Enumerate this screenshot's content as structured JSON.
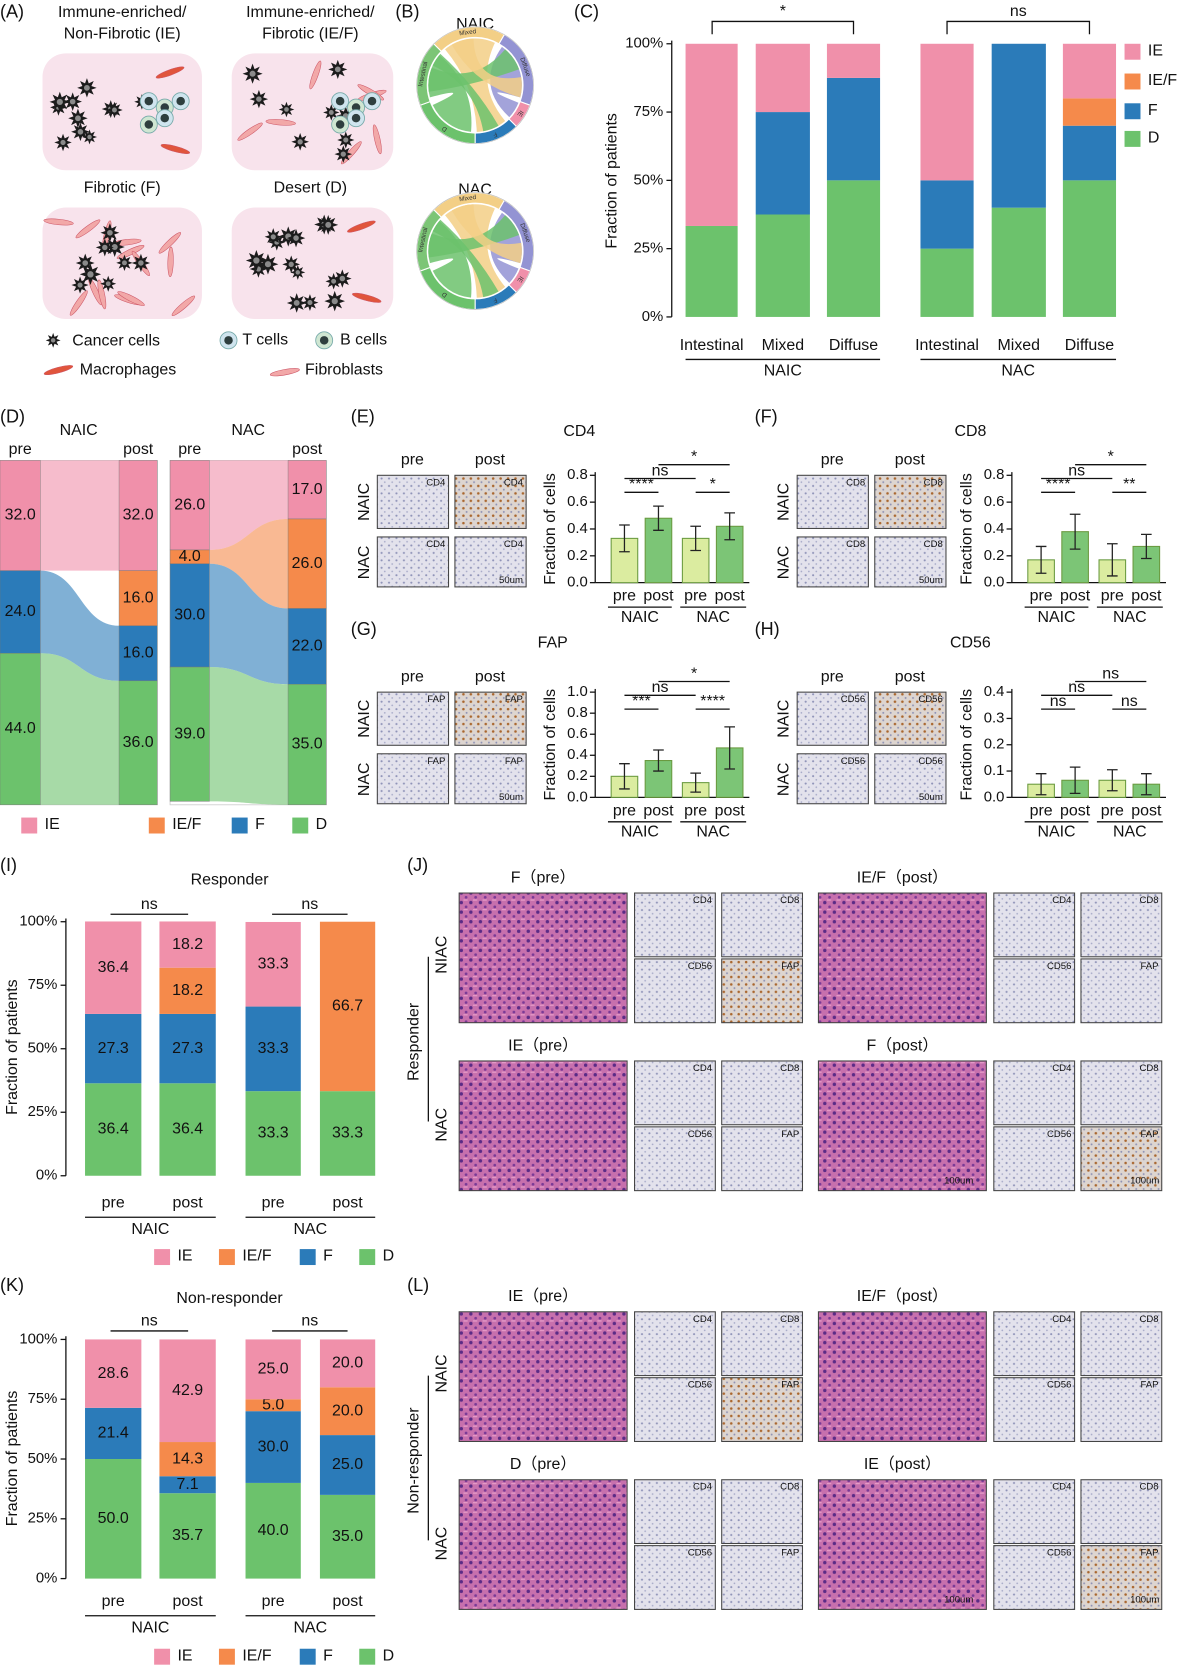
{
  "figure": {
    "letters": [
      "(A)",
      "(B)",
      "(C)",
      "(D)",
      "(E)",
      "(F)",
      "(G)",
      "(H)",
      "(I)",
      "(J)",
      "(K)",
      "(L)"
    ],
    "A": {
      "subtypes": [
        [
          "Immune-enriched/",
          "Non-Fibrotic (IE)"
        ],
        [
          "Immune-enriched/",
          "Fibrotic (IE/F)"
        ],
        [
          "Fibrotic (F)"
        ],
        [
          "Desert (D)"
        ]
      ],
      "legend": [
        "Cancer cells",
        "T cells",
        "B cells",
        "Macrophages",
        "Fibroblasts"
      ]
    },
    "B": {
      "titles": [
        "NAIC",
        "NAC"
      ],
      "segment_labels": [
        "Mixed",
        "Diffuse",
        "Intestinal",
        "IE",
        "F",
        "D"
      ]
    },
    "micrographs": [
      {
        "stages": [
          "pre",
          "post"
        ],
        "rows": [
          "NAIC",
          "NAC"
        ],
        "stain": "CD4",
        "scale": "50um"
      },
      {
        "stages": [
          "pre",
          "post"
        ],
        "rows": [
          "NAIC",
          "NAC"
        ],
        "stain": "CD8",
        "scale": "50um"
      },
      {
        "stages": [
          "pre",
          "post"
        ],
        "rows": [
          "NAIC",
          "NAC"
        ],
        "stain": "FAP",
        "scale": "50um"
      },
      {
        "stages": [
          "pre",
          "post"
        ],
        "rows": [
          "NAIC",
          "NAC"
        ],
        "stain": "CD56",
        "scale": "50um"
      }
    ],
    "J": {
      "group": "Responder",
      "rows": [
        "NIAC",
        "NAC"
      ],
      "titles": [
        "F（pre）",
        "IE/F（post）",
        "IE（pre）",
        "F（post）"
      ],
      "stains": [
        "CD4",
        "CD8",
        "CD56",
        "FAP"
      ],
      "scale": "100um"
    },
    "L": {
      "group": "Non-responder",
      "rows": [
        "NAIC",
        "NAC"
      ],
      "titles": [
        "IE（pre）",
        "IE/F（post）",
        "D（pre）",
        "IE（post）"
      ],
      "stains": [
        "CD4",
        "CD8",
        "CD56",
        "FAP"
      ],
      "scale": "100um"
    }
  },
  "chart_data": [
    {
      "type": "stacked_bar",
      "y_label": "Fraction of patients",
      "categories": [
        "Intestinal",
        "Mixed",
        "Diffuse",
        "Intestinal",
        "Mixed",
        "Diffuse"
      ],
      "groups": [
        "NAIC",
        "NAC"
      ],
      "group_tests": [
        "*",
        "ns"
      ],
      "ylim": [
        0,
        100
      ],
      "yticks": [
        {
          "value": 0,
          "label": "0%"
        },
        {
          "value": 25,
          "label": "25%"
        },
        {
          "value": 50,
          "label": "50%"
        },
        {
          "value": 75,
          "label": "75%"
        },
        {
          "value": 100,
          "label": "100%"
        }
      ],
      "legend": "right",
      "series": [
        {
          "name": "IE",
          "color": "#f090aa",
          "values": [
            66.7,
            25,
            12.5,
            50,
            0,
            20
          ]
        },
        {
          "name": "IE/F",
          "color": "#f58a4b",
          "values": [
            0,
            0,
            0,
            0,
            0,
            10
          ]
        },
        {
          "name": "F",
          "color": "#2b7bb9",
          "values": [
            0,
            37.5,
            37.5,
            25,
            60,
            20
          ]
        },
        {
          "name": "D",
          "color": "#6cc26c",
          "values": [
            33.3,
            37.5,
            50,
            25,
            40,
            50
          ]
        }
      ]
    },
    {
      "type": "sankey",
      "categories": [
        "pre",
        "post",
        "pre",
        "post"
      ],
      "groups": [
        "NAIC",
        "NAC"
      ],
      "legend": "bottom",
      "series": [
        {
          "name": "IE",
          "color": "#f090aa",
          "values": [
            32,
            32,
            26,
            17
          ],
          "value_labels": [
            "32.0",
            "32.0",
            "26.0",
            "17.0"
          ]
        },
        {
          "name": "IE/F",
          "color": "#f58a4b",
          "values": [
            0,
            16,
            4,
            26
          ],
          "value_labels": [
            null,
            "16.0",
            "4.0",
            "26.0"
          ]
        },
        {
          "name": "F",
          "color": "#2b7bb9",
          "values": [
            24,
            16,
            30,
            22
          ],
          "value_labels": [
            "24.0",
            "16.0",
            "30.0",
            "22.0"
          ]
        },
        {
          "name": "D",
          "color": "#6cc26c",
          "values": [
            44,
            36,
            39,
            35
          ],
          "value_labels": [
            "44.0",
            "36.0",
            "39.0",
            "35.0"
          ]
        }
      ]
    },
    {
      "type": "bar",
      "title": "CD4",
      "y_label": "Fraction of cells",
      "categories": [
        "pre",
        "post",
        "pre",
        "post"
      ],
      "groups": [
        "NAIC",
        "NAC"
      ],
      "values": [
        0.33,
        0.48,
        0.33,
        0.42
      ],
      "errors": [
        0.1,
        0.09,
        0.09,
        0.1
      ],
      "colors": [
        "#dbeca0",
        "#7cc576",
        "#dbeca0",
        "#7cc576"
      ],
      "tests": [
        "****",
        "*",
        "ns",
        "*"
      ],
      "ylim": [
        0,
        0.8
      ],
      "yticks": [
        {
          "value": 0,
          "label": "0.0"
        },
        0.2,
        0.4,
        0.6,
        0.8
      ]
    },
    {
      "type": "bar",
      "title": "CD8",
      "y_label": "Fraction of cells",
      "categories": [
        "pre",
        "post",
        "pre",
        "post"
      ],
      "groups": [
        "NAIC",
        "NAC"
      ],
      "values": [
        0.17,
        0.38,
        0.17,
        0.27
      ],
      "errors": [
        0.1,
        0.13,
        0.12,
        0.09
      ],
      "colors": [
        "#dbeca0",
        "#7cc576",
        "#dbeca0",
        "#7cc576"
      ],
      "tests": [
        "****",
        "**",
        "ns",
        "*"
      ],
      "ylim": [
        0,
        0.8
      ],
      "yticks": [
        {
          "value": 0,
          "label": "0.0"
        },
        0.2,
        0.4,
        0.6,
        0.8
      ]
    },
    {
      "type": "bar",
      "title": "FAP",
      "y_label": "Fraction of cells",
      "categories": [
        "pre",
        "post",
        "pre",
        "post"
      ],
      "groups": [
        "NAIC",
        "NAC"
      ],
      "values": [
        0.2,
        0.35,
        0.14,
        0.47
      ],
      "errors": [
        0.12,
        0.1,
        0.09,
        0.2
      ],
      "colors": [
        "#dbeca0",
        "#7cc576",
        "#dbeca0",
        "#7cc576"
      ],
      "tests": [
        "***",
        "****",
        "ns",
        "*"
      ],
      "ylim": [
        0,
        1
      ],
      "yticks": [
        {
          "value": 0,
          "label": "0.0"
        },
        0.2,
        0.4,
        0.6,
        0.8,
        {
          "value": 1,
          "label": "1.0"
        }
      ]
    },
    {
      "type": "bar",
      "title": "CD56",
      "y_label": "Fraction of cells",
      "categories": [
        "pre",
        "post",
        "pre",
        "post"
      ],
      "groups": [
        "NAIC",
        "NAC"
      ],
      "values": [
        0.05,
        0.065,
        0.065,
        0.05
      ],
      "errors": [
        0.04,
        0.05,
        0.04,
        0.04
      ],
      "colors": [
        "#dbeca0",
        "#7cc576",
        "#dbeca0",
        "#7cc576"
      ],
      "tests": [
        "ns",
        "ns",
        "ns",
        "ns"
      ],
      "ylim": [
        0,
        0.4
      ],
      "yticks": [
        {
          "value": 0,
          "label": "0.0"
        },
        0.1,
        0.2,
        0.3,
        0.4
      ]
    },
    {
      "type": "stacked_bar",
      "title": "Responder",
      "y_label": "Fraction of patients",
      "categories": [
        "pre",
        "post",
        "pre",
        "post"
      ],
      "groups": [
        "NAIC",
        "NAC"
      ],
      "group_tests": [
        "ns",
        "ns"
      ],
      "ylim": [
        0,
        100
      ],
      "yticks": [
        {
          "value": 0,
          "label": "0%"
        },
        {
          "value": 25,
          "label": "25%"
        },
        {
          "value": 50,
          "label": "50%"
        },
        {
          "value": 75,
          "label": "75%"
        },
        {
          "value": 100,
          "label": "100%"
        }
      ],
      "legend": "bottom",
      "series": [
        {
          "name": "IE",
          "color": "#f090aa",
          "values": [
            36.4,
            18.2,
            33.3,
            0
          ],
          "value_labels": [
            "36.4",
            "18.2",
            "33.3",
            null
          ]
        },
        {
          "name": "IE/F",
          "color": "#f58a4b",
          "values": [
            0,
            18.2,
            0,
            66.7
          ],
          "value_labels": [
            null,
            "18.2",
            null,
            "66.7"
          ]
        },
        {
          "name": "F",
          "color": "#2b7bb9",
          "values": [
            27.3,
            27.3,
            33.3,
            0
          ],
          "value_labels": [
            "27.3",
            "27.3",
            "33.3",
            null
          ]
        },
        {
          "name": "D",
          "color": "#6cc26c",
          "values": [
            36.4,
            36.4,
            33.3,
            33.3
          ],
          "value_labels": [
            "36.4",
            "36.4",
            "33.3",
            "33.3"
          ]
        }
      ]
    },
    {
      "type": "stacked_bar",
      "title": "Non-responder",
      "y_label": "Fraction of patients",
      "categories": [
        "pre",
        "post",
        "pre",
        "post"
      ],
      "groups": [
        "NAIC",
        "NAC"
      ],
      "group_tests": [
        "ns",
        "ns"
      ],
      "ylim": [
        0,
        100
      ],
      "yticks": [
        {
          "value": 0,
          "label": "0%"
        },
        {
          "value": 25,
          "label": "25%"
        },
        {
          "value": 50,
          "label": "50%"
        },
        {
          "value": 75,
          "label": "75%"
        },
        {
          "value": 100,
          "label": "100%"
        }
      ],
      "legend": "bottom",
      "series": [
        {
          "name": "IE",
          "color": "#f090aa",
          "values": [
            28.6,
            42.9,
            25,
            20
          ],
          "value_labels": [
            "28.6",
            "42.9",
            "25.0",
            "20.0"
          ]
        },
        {
          "name": "IE/F",
          "color": "#f58a4b",
          "values": [
            0,
            14.3,
            5,
            20
          ],
          "value_labels": [
            null,
            "14.3",
            "5.0",
            "20.0"
          ]
        },
        {
          "name": "F",
          "color": "#2b7bb9",
          "values": [
            21.4,
            7.1,
            30,
            25
          ],
          "value_labels": [
            "21.4",
            "7.1",
            "30.0",
            "25.0"
          ]
        },
        {
          "name": "D",
          "color": "#6cc26c",
          "values": [
            50,
            35.7,
            40,
            35
          ],
          "value_labels": [
            "50.0",
            "35.7",
            "40.0",
            "35.0"
          ]
        }
      ]
    }
  ]
}
